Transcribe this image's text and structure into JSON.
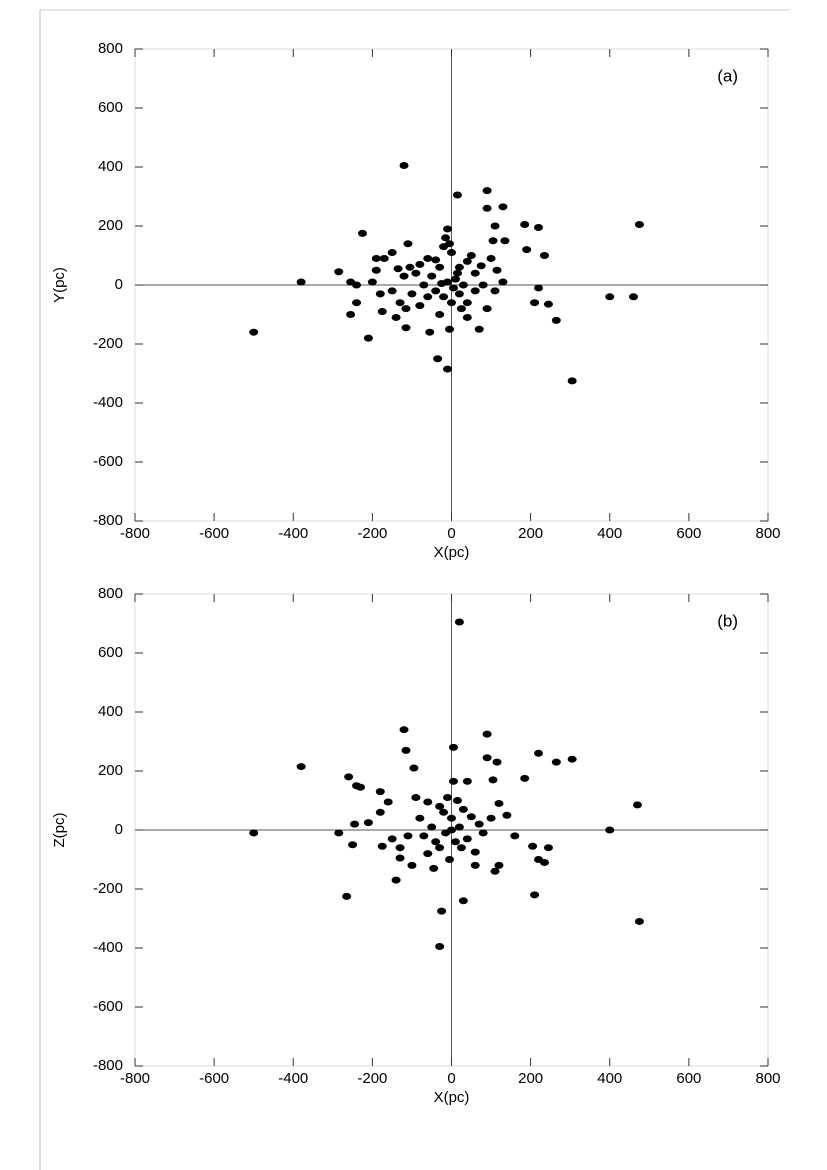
{
  "chart_data": [
    {
      "type": "scatter",
      "annotation": "(a)",
      "x_label": "X(pc)",
      "y_label": "Y(pc)",
      "color": "#000000",
      "xlim": [
        -800,
        800
      ],
      "ylim": [
        -800,
        800
      ],
      "xticks": [
        -800,
        -600,
        -400,
        -200,
        0,
        200,
        400,
        600,
        800
      ],
      "yticks": [
        -800,
        -600,
        -400,
        -200,
        0,
        200,
        400,
        600,
        800
      ],
      "x": [
        -120,
        15,
        90,
        90,
        130,
        185,
        220,
        475,
        -225,
        -380,
        -500,
        -285,
        -255,
        -240,
        -240,
        -255,
        -210,
        -175,
        -140,
        -115,
        -35,
        -10,
        305,
        400,
        460,
        265,
        245,
        220,
        210,
        235,
        190,
        110,
        135,
        105,
        100,
        75,
        115,
        90,
        70,
        40,
        -5,
        -55,
        -80,
        -130,
        -115,
        -180,
        -190,
        -190,
        -170,
        -110,
        -150,
        -135,
        -105,
        -120,
        -80,
        -60,
        -40,
        -20,
        -15,
        -10,
        -5,
        0,
        20,
        40,
        60,
        -30,
        -50,
        -70,
        -40,
        -20,
        0,
        20,
        30,
        10,
        -10,
        5,
        -25,
        15,
        40,
        60,
        80,
        -90,
        -100,
        -60,
        50,
        25,
        -30,
        110,
        130,
        -150,
        -200
      ],
      "values": [
        405,
        305,
        320,
        260,
        265,
        205,
        195,
        205,
        175,
        10,
        -160,
        45,
        10,
        0,
        -60,
        -100,
        -180,
        -90,
        -110,
        -145,
        -250,
        -285,
        -325,
        -40,
        -40,
        -120,
        -65,
        -10,
        -60,
        100,
        120,
        200,
        150,
        150,
        90,
        65,
        50,
        -80,
        -150,
        -110,
        -150,
        -160,
        -70,
        -60,
        -80,
        -30,
        50,
        90,
        90,
        140,
        110,
        55,
        60,
        30,
        70,
        90,
        85,
        130,
        160,
        190,
        140,
        110,
        60,
        80,
        40,
        60,
        30,
        0,
        -20,
        -40,
        -60,
        -30,
        0,
        20,
        10,
        -10,
        5,
        40,
        -60,
        -20,
        0,
        40,
        -30,
        -40,
        100,
        -80,
        -100,
        -20,
        10,
        -20,
        10
      ]
    },
    {
      "type": "scatter",
      "annotation": "(b)",
      "x_label": "X(pc)",
      "y_label": "Z(pc)",
      "color": "#000000",
      "xlim": [
        -800,
        800
      ],
      "ylim": [
        -800,
        800
      ],
      "xticks": [
        -800,
        -600,
        -400,
        -200,
        0,
        200,
        400,
        600,
        800
      ],
      "yticks": [
        -800,
        -600,
        -400,
        -200,
        0,
        200,
        400,
        600,
        800
      ],
      "x": [
        20,
        -380,
        -500,
        470,
        400,
        475,
        305,
        265,
        220,
        185,
        205,
        220,
        245,
        235,
        210,
        -260,
        -240,
        -230,
        -265,
        -285,
        -245,
        -250,
        -210,
        -175,
        -180,
        -160,
        -140,
        -130,
        -120,
        -115,
        -95,
        -130,
        -110,
        -80,
        -60,
        -30,
        -25,
        -30,
        30,
        5,
        90,
        90,
        115,
        105,
        120,
        100,
        120,
        110,
        60,
        60,
        40,
        20,
        0,
        -15,
        10,
        -40,
        -20,
        30,
        70,
        -60,
        -45,
        -5,
        -30,
        0,
        15,
        40,
        -10,
        140,
        160,
        -90,
        -100,
        80,
        -50,
        -70,
        25,
        -150,
        -180,
        50,
        5
      ],
      "values": [
        705,
        215,
        -10,
        85,
        0,
        -310,
        240,
        230,
        260,
        175,
        -55,
        -100,
        -60,
        -110,
        -220,
        180,
        150,
        145,
        -225,
        -10,
        20,
        -50,
        25,
        -55,
        130,
        95,
        -170,
        -95,
        340,
        270,
        210,
        -60,
        -20,
        40,
        95,
        80,
        -275,
        -395,
        -240,
        280,
        325,
        245,
        230,
        170,
        90,
        40,
        -120,
        -140,
        -120,
        -75,
        -30,
        10,
        40,
        -10,
        -40,
        -40,
        60,
        70,
        20,
        -80,
        -130,
        -100,
        -60,
        0,
        100,
        165,
        110,
        50,
        -20,
        110,
        -120,
        -10,
        10,
        -20,
        -60,
        -30,
        60,
        45,
        165
      ]
    }
  ]
}
